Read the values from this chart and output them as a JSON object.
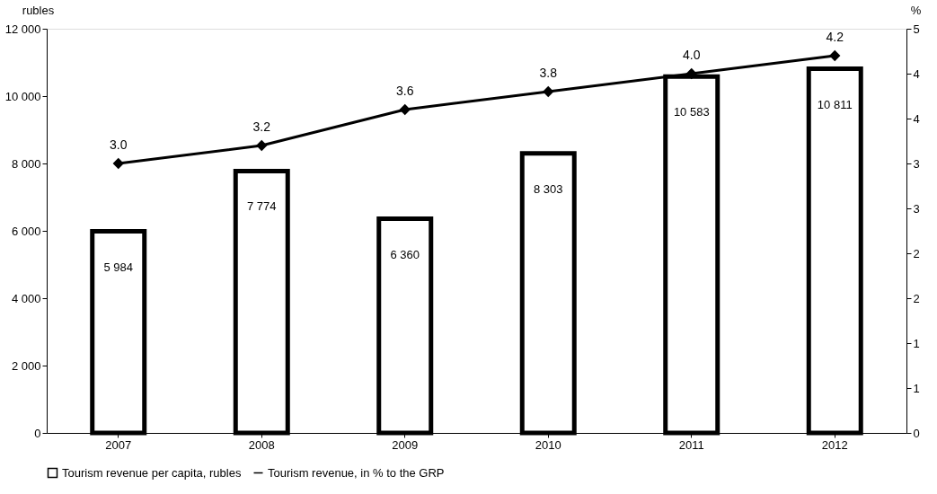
{
  "chart_data": {
    "type": "bar",
    "categories": [
      "2007",
      "2008",
      "2009",
      "2010",
      "2011",
      "2012"
    ],
    "ylabel": "rubles",
    "y2label": "%",
    "ylim": [
      0,
      12000
    ],
    "yticks": [
      0,
      {
        "value": 2000,
        "label": "2 000"
      },
      {
        "value": 4000,
        "label": "4 000"
      },
      {
        "value": 6000,
        "label": "6 000"
      },
      {
        "value": 8000,
        "label": "8 000"
      },
      {
        "value": 10000,
        "label": "10 000"
      },
      {
        "value": 12000,
        "label": "12 000"
      }
    ],
    "y2lim": [
      0,
      4.5
    ],
    "y2ticks": [
      0,
      {
        "value": 0.5,
        "label": "1"
      },
      1,
      {
        "value": 1.5,
        "label": "2"
      },
      2,
      {
        "value": 2.5,
        "label": "3"
      },
      3,
      {
        "value": 3.5,
        "label": "4"
      },
      4,
      {
        "value": 4.5,
        "label": "5"
      }
    ],
    "series": [
      {
        "name": "Tourism revenue  per capita, rubles",
        "color": "#ffffff",
        "values": [
          5984,
          7774,
          6360,
          8303,
          10583,
          10811
        ],
        "value_labels": [
          "5 984",
          "7 774",
          "6 360",
          "8 303",
          "10 583",
          "10 811"
        ]
      },
      {
        "name": "Tourism revenue, in % to the GRP",
        "type": "line",
        "axis": "y2",
        "color": "#000000",
        "values": [
          3.0,
          3.2,
          3.6,
          3.8,
          4.0,
          4.2
        ],
        "value_labels": [
          "3.0",
          "3.2",
          "3.6",
          "3.8",
          "4.0",
          "4.2"
        ]
      }
    ],
    "marker": "diamond",
    "line_style": "solid",
    "grid": false,
    "legend": "bottom"
  }
}
